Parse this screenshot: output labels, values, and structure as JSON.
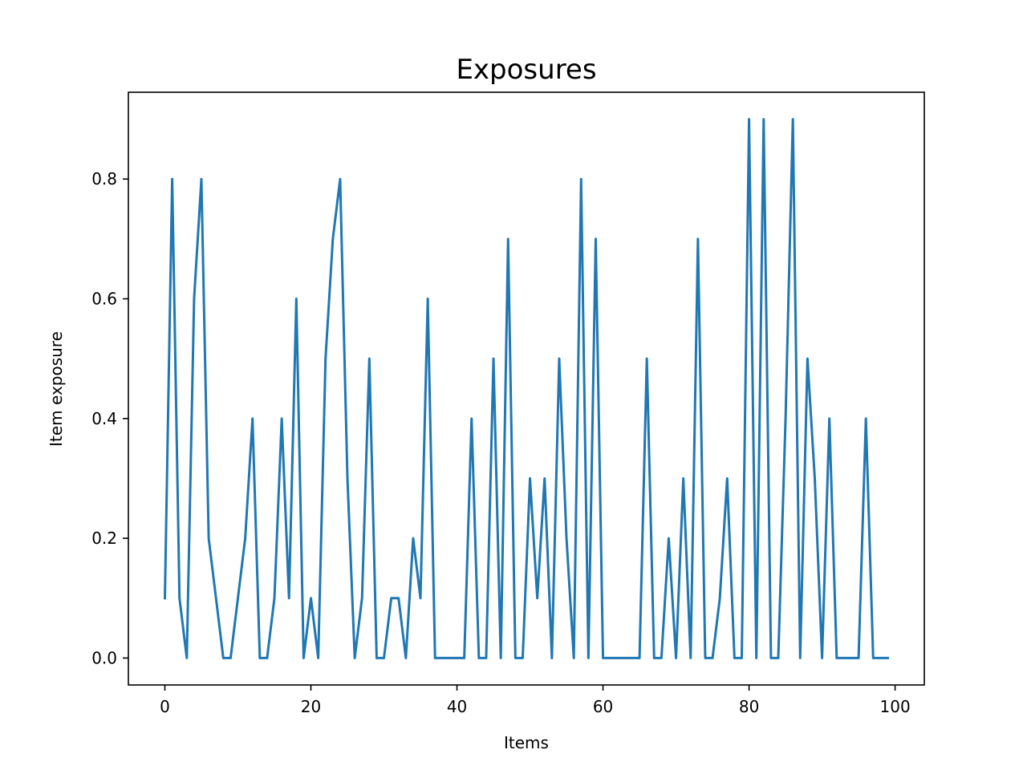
{
  "chart_data": {
    "type": "line",
    "title": "Exposures",
    "xlabel": "Items",
    "ylabel": "Item exposure",
    "xlim": [
      -5,
      104
    ],
    "ylim": [
      -0.045,
      0.945
    ],
    "xticks": [
      0,
      20,
      40,
      60,
      80,
      100
    ],
    "yticks": [
      0.0,
      0.2,
      0.4,
      0.6,
      0.8
    ],
    "xtick_labels": [
      "0",
      "20",
      "40",
      "60",
      "80",
      "100"
    ],
    "ytick_labels": [
      "0.0",
      "0.2",
      "0.4",
      "0.6",
      "0.8"
    ],
    "grid": false,
    "series": [
      {
        "color": "#1f77b4",
        "x": [
          0,
          1,
          2,
          3,
          4,
          5,
          6,
          7,
          8,
          9,
          10,
          11,
          12,
          13,
          14,
          15,
          16,
          17,
          18,
          19,
          20,
          21,
          22,
          23,
          24,
          25,
          26,
          27,
          28,
          29,
          30,
          31,
          32,
          33,
          34,
          35,
          36,
          37,
          38,
          39,
          40,
          41,
          42,
          43,
          44,
          45,
          46,
          47,
          48,
          49,
          50,
          51,
          52,
          53,
          54,
          55,
          56,
          57,
          58,
          59,
          60,
          61,
          62,
          63,
          64,
          65,
          66,
          67,
          68,
          69,
          70,
          71,
          72,
          73,
          74,
          75,
          76,
          77,
          78,
          79,
          80,
          81,
          82,
          83,
          84,
          85,
          86,
          87,
          88,
          89,
          90,
          91,
          92,
          93,
          94,
          95,
          96,
          97,
          98,
          99
        ],
        "values": [
          0.1,
          0.8,
          0.1,
          0.0,
          0.6,
          0.8,
          0.2,
          0.1,
          0.0,
          0.0,
          0.1,
          0.2,
          0.4,
          0.0,
          0.0,
          0.1,
          0.4,
          0.1,
          0.6,
          0.0,
          0.1,
          0.0,
          0.5,
          0.7,
          0.8,
          0.3,
          0.0,
          0.1,
          0.5,
          0.0,
          0.0,
          0.1,
          0.1,
          0.0,
          0.2,
          0.1,
          0.6,
          0.0,
          0.0,
          0.0,
          0.0,
          0.0,
          0.4,
          0.0,
          0.0,
          0.5,
          0.0,
          0.7,
          0.0,
          0.0,
          0.3,
          0.1,
          0.3,
          0.0,
          0.5,
          0.2,
          0.0,
          0.8,
          0.0,
          0.7,
          0.0,
          0.0,
          0.0,
          0.0,
          0.0,
          0.0,
          0.5,
          0.0,
          0.0,
          0.2,
          0.0,
          0.3,
          0.0,
          0.7,
          0.0,
          0.0,
          0.1,
          0.3,
          0.0,
          0.0,
          0.9,
          0.0,
          0.9,
          0.0,
          0.0,
          0.4,
          0.9,
          0.0,
          0.5,
          0.3,
          0.0,
          0.4,
          0.0,
          0.0,
          0.0,
          0.0,
          0.4,
          0.0,
          0.0,
          0.0
        ]
      }
    ]
  }
}
